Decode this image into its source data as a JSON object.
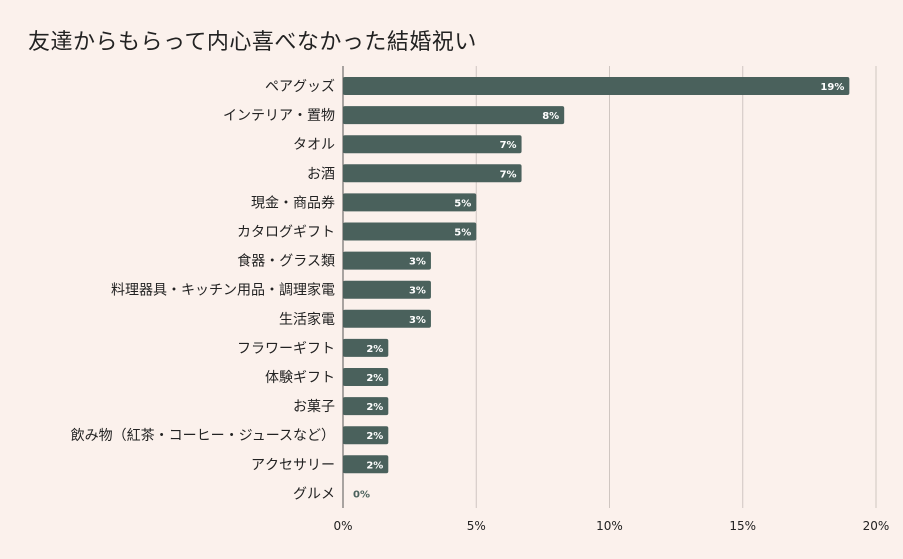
{
  "title": "友達からもらって内心喜べなかった結婚祝い",
  "colors": {
    "background": "#fbf1ec",
    "bar": "#4a615c",
    "grid": "#cfc6c1",
    "axis": "#555555",
    "value_label_inside": "#ffffff",
    "value_label_outside": "#4a615c"
  },
  "chart_data": {
    "type": "bar",
    "orientation": "horizontal",
    "categories": [
      "ペアグッズ",
      "インテリア・置物",
      "タオル",
      "お酒",
      "現金・商品券",
      "カタログギフト",
      "食器・グラス類",
      "料理器具・キッチン用品・調理家電",
      "生活家電",
      "フラワーギフト",
      "体験ギフト",
      "お菓子",
      "飲み物（紅茶・コーヒー・ジュースなど）",
      "アクセサリー",
      "グルメ"
    ],
    "values": [
      19,
      8.3,
      6.7,
      6.7,
      5,
      5,
      3.3,
      3.3,
      3.3,
      1.7,
      1.7,
      1.7,
      1.7,
      1.7,
      0
    ],
    "value_labels": [
      "19%",
      "8%",
      "7%",
      "7%",
      "5%",
      "5%",
      "3%",
      "3%",
      "3%",
      "2%",
      "2%",
      "2%",
      "2%",
      "2%",
      "0%"
    ],
    "xlim": [
      0,
      20
    ],
    "xticks": [
      0,
      5,
      10,
      15,
      20
    ],
    "xtick_labels": [
      "0%",
      "5%",
      "10%",
      "15%",
      "20%"
    ],
    "xlabel": "",
    "ylabel": "",
    "grid": true,
    "legend": "none"
  }
}
